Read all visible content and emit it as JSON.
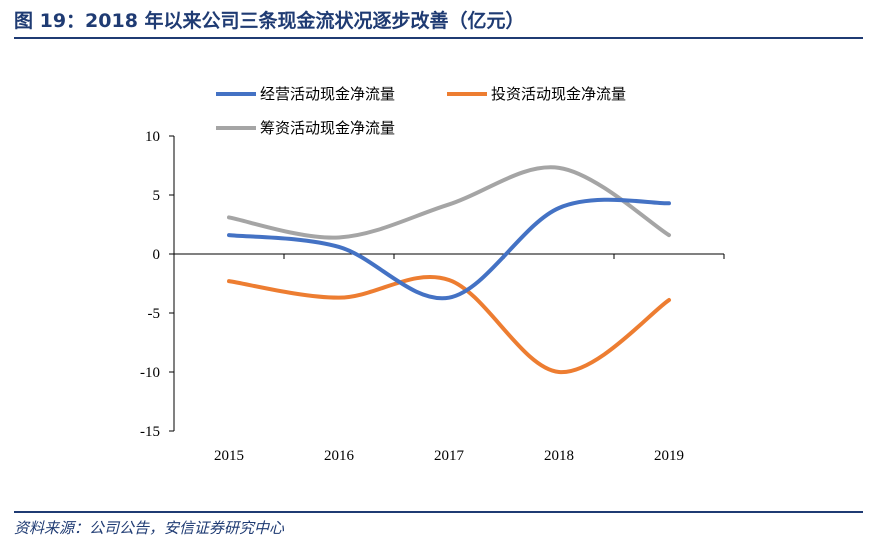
{
  "header": {
    "title": "图 19：2018 年以来公司三条现金流状况逐步改善（亿元）"
  },
  "footer": {
    "source": "资料来源：公司公告，安信证券研究中心"
  },
  "chart_data": {
    "type": "line",
    "title": "",
    "xlabel": "",
    "ylabel": "",
    "categories": [
      "2015",
      "2016",
      "2017",
      "2018",
      "2019"
    ],
    "ylim": [
      -15,
      10
    ],
    "yticks": [
      "10",
      "5",
      "0",
      "-5",
      "-10",
      "-15"
    ],
    "ytick_values": [
      10,
      5,
      0,
      -5,
      -10,
      -15
    ],
    "legend_position": "top",
    "series": [
      {
        "name": "经营活动现金净流量",
        "color": "#4472c4",
        "values": [
          1.6,
          0.6,
          -3.7,
          3.9,
          4.3
        ]
      },
      {
        "name": "投资活动现金净流量",
        "color": "#ed7d31",
        "values": [
          -2.3,
          -3.7,
          -2.2,
          -10.0,
          -3.9
        ]
      },
      {
        "name": "筹资活动现金净流量",
        "color": "#a5a5a5",
        "values": [
          3.1,
          1.4,
          4.2,
          7.3,
          1.6
        ]
      }
    ]
  }
}
